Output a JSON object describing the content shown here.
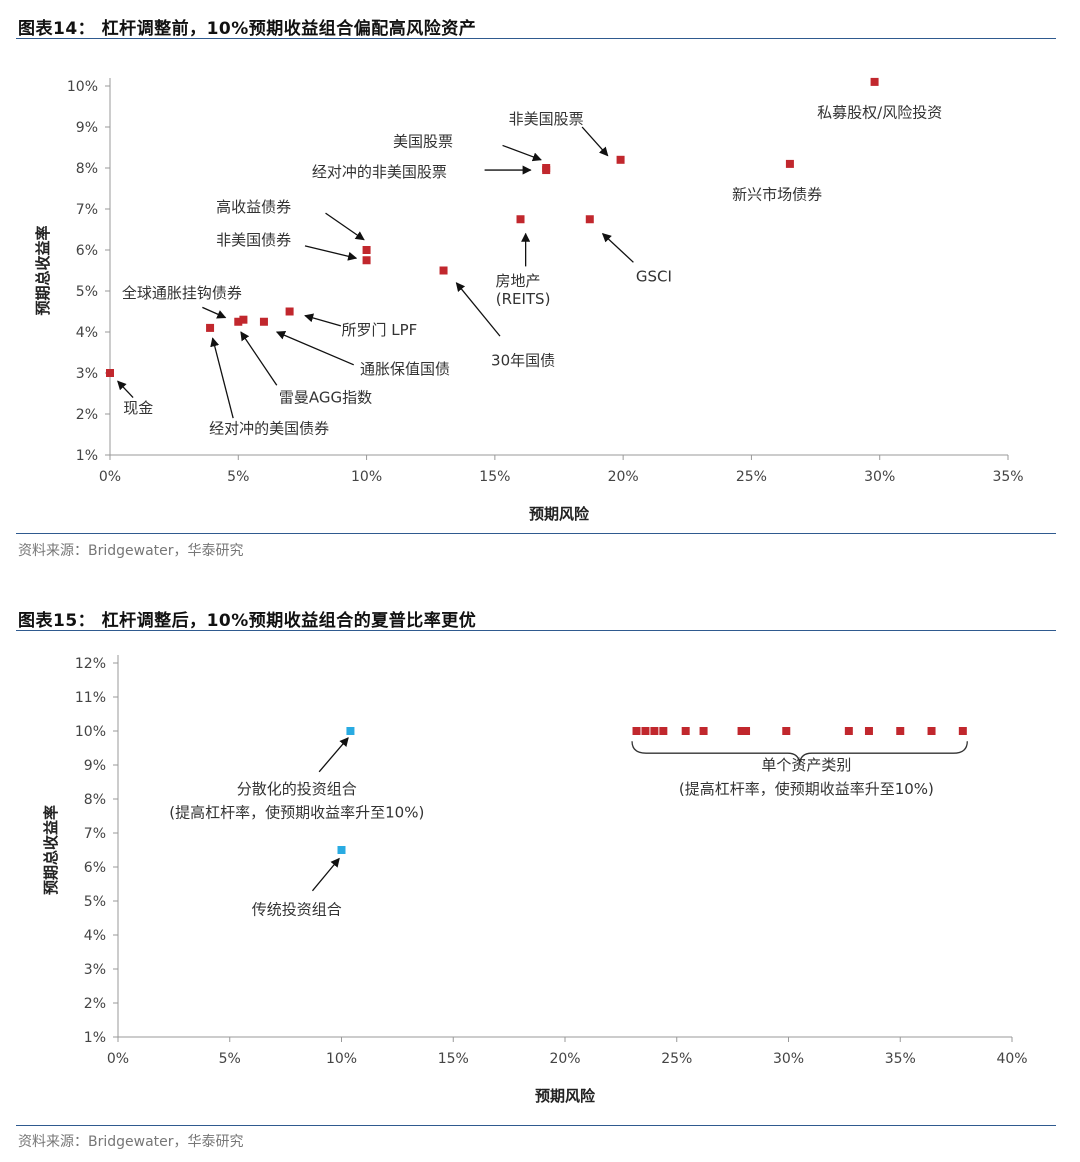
{
  "figure1": {
    "title": "图表14： 杠杆调整前，10%预期收益组合偏配高风险资产",
    "source": "资料来源：Bridgewater，华泰研究"
  },
  "figure2": {
    "title": "图表15： 杠杆调整后，10%预期收益组合的夏普比率更优",
    "source": "资料来源：Bridgewater，华泰研究"
  },
  "colors": {
    "marker_red": "#c1272d",
    "marker_blue": "#29abe2",
    "rule_blue": "#2f5a8f"
  },
  "chart_data": [
    {
      "type": "scatter",
      "title": "",
      "xlabel": "预期风险",
      "ylabel": "预期总收益率",
      "xlim": [
        0,
        35
      ],
      "ylim": [
        1,
        10
      ],
      "x_ticks": [
        "0%",
        "5%",
        "10%",
        "15%",
        "20%",
        "25%",
        "30%",
        "35%"
      ],
      "y_ticks": [
        "1%",
        "2%",
        "3%",
        "4%",
        "5%",
        "6%",
        "7%",
        "8%",
        "9%",
        "10%"
      ],
      "points": [
        {
          "x": 0.0,
          "y": 3.0
        },
        {
          "x": 3.9,
          "y": 4.1
        },
        {
          "x": 5.0,
          "y": 4.25
        },
        {
          "x": 5.2,
          "y": 4.3
        },
        {
          "x": 6.0,
          "y": 4.25
        },
        {
          "x": 7.0,
          "y": 4.5
        },
        {
          "x": 10.0,
          "y": 6.0
        },
        {
          "x": 10.0,
          "y": 5.75
        },
        {
          "x": 13.0,
          "y": 5.5
        },
        {
          "x": 16.0,
          "y": 6.75
        },
        {
          "x": 17.0,
          "y": 8.0
        },
        {
          "x": 17.0,
          "y": 7.95
        },
        {
          "x": 18.7,
          "y": 6.75
        },
        {
          "x": 19.9,
          "y": 8.2
        },
        {
          "x": 26.5,
          "y": 8.1
        },
        {
          "x": 29.8,
          "y": 10.1
        }
      ],
      "annotations": [
        {
          "text": "现金",
          "x": 1.1,
          "y": 2.15,
          "ax": 0.3,
          "ay": 2.8,
          "bx": 0.9,
          "by": 2.4
        },
        {
          "text": "经对冲的美国债券",
          "x": 6.2,
          "y": 1.65,
          "ax": 4.0,
          "ay": 3.85,
          "bx": 4.8,
          "by": 1.9
        },
        {
          "text": "雷曼AGG指数",
          "x": 8.4,
          "y": 2.4,
          "ax": 5.1,
          "ay": 4.0,
          "bx": 6.5,
          "by": 2.7
        },
        {
          "text": "通胀保值国债",
          "x": 11.5,
          "y": 3.1,
          "ax": 6.5,
          "ay": 4.0,
          "bx": 9.5,
          "by": 3.2
        },
        {
          "text": "所罗门 LPF",
          "x": 10.5,
          "y": 4.05,
          "ax": 7.6,
          "ay": 4.4,
          "bx": 9.0,
          "by": 4.15
        },
        {
          "text": "全球通胀挂钩债券",
          "x": 2.8,
          "y": 4.95,
          "ax": 4.5,
          "ay": 4.35,
          "bx": 3.6,
          "by": 4.6
        },
        {
          "text": "非美国债券",
          "x": 5.6,
          "y": 6.25,
          "ax": 9.6,
          "ay": 5.8,
          "bx": 7.6,
          "by": 6.1
        },
        {
          "text": "高收益债券",
          "x": 5.6,
          "y": 7.05,
          "ax": 9.9,
          "ay": 6.25,
          "bx": 8.4,
          "by": 6.9
        },
        {
          "text": "30年国债",
          "x": 16.1,
          "y": 3.3,
          "ax": 13.5,
          "ay": 5.2,
          "bx": 15.2,
          "by": 3.9
        },
        {
          "text": "房地产",
          "x": 15.9,
          "y": 5.25,
          "ax": 16.2,
          "ay": 6.4,
          "bx": 16.2,
          "by": 5.6
        },
        {
          "text": "(REITS)",
          "x": 16.1,
          "y": 4.8
        },
        {
          "text": "GSCI",
          "x": 21.2,
          "y": 5.35,
          "ax": 19.2,
          "ay": 6.4,
          "bx": 20.4,
          "by": 5.7
        },
        {
          "text": "美国股票",
          "x": 12.2,
          "y": 8.65,
          "ax": 16.8,
          "ay": 8.2,
          "bx": 15.3,
          "by": 8.55
        },
        {
          "text": "经对冲的非美国股票",
          "x": 10.5,
          "y": 7.9,
          "ax": 16.4,
          "ay": 7.95,
          "bx": 14.6,
          "by": 7.95
        },
        {
          "text": "非美国股票",
          "x": 17.0,
          "y": 9.2,
          "ax": 19.4,
          "ay": 8.3,
          "bx": 18.4,
          "by": 9.0
        },
        {
          "text": "新兴市场债券",
          "x": 26.0,
          "y": 7.35
        },
        {
          "text": "私募股权/风险投资",
          "x": 30.0,
          "y": 9.35
        }
      ]
    },
    {
      "type": "scatter",
      "title": "",
      "xlabel": "预期风险",
      "ylabel": "预期总收益率",
      "xlim": [
        0,
        40
      ],
      "ylim": [
        1,
        12
      ],
      "x_ticks": [
        "0%",
        "5%",
        "10%",
        "15%",
        "20%",
        "25%",
        "30%",
        "35%",
        "40%"
      ],
      "y_ticks": [
        "1%",
        "2%",
        "3%",
        "4%",
        "5%",
        "6%",
        "7%",
        "8%",
        "9%",
        "10%",
        "11%",
        "12%"
      ],
      "points": [
        {
          "x": 10.4,
          "y": 10.0,
          "group": "diversified"
        },
        {
          "x": 10.0,
          "y": 6.5,
          "group": "diversified"
        },
        {
          "x": 23.2,
          "y": 10.0
        },
        {
          "x": 23.6,
          "y": 10.0
        },
        {
          "x": 24.0,
          "y": 10.0
        },
        {
          "x": 24.4,
          "y": 10.0
        },
        {
          "x": 25.4,
          "y": 10.0
        },
        {
          "x": 26.2,
          "y": 10.0
        },
        {
          "x": 27.9,
          "y": 10.0
        },
        {
          "x": 28.1,
          "y": 10.0
        },
        {
          "x": 29.9,
          "y": 10.0
        },
        {
          "x": 32.7,
          "y": 10.0
        },
        {
          "x": 33.6,
          "y": 10.0
        },
        {
          "x": 35.0,
          "y": 10.0
        },
        {
          "x": 36.4,
          "y": 10.0
        },
        {
          "x": 37.8,
          "y": 10.0
        }
      ],
      "brace": {
        "x0": 23.0,
        "x1": 38.0,
        "y": 9.7
      },
      "annotations": [
        {
          "text": "分散化的投资组合",
          "x": 8.0,
          "y": 8.3,
          "ax": 10.3,
          "ay": 9.8,
          "bx": 9.0,
          "by": 8.8
        },
        {
          "text": "(提高杠杆率，使预期收益率升至10%)",
          "x": 8.0,
          "y": 7.6
        },
        {
          "text": "传统投资组合",
          "x": 8.0,
          "y": 4.75,
          "ax": 9.9,
          "ay": 6.25,
          "bx": 8.7,
          "by": 5.3
        },
        {
          "text": "单个资产类别",
          "x": 30.8,
          "y": 9.0
        },
        {
          "text": "(提高杠杆率，使预期收益率升至10%)",
          "x": 30.8,
          "y": 8.3
        }
      ]
    }
  ]
}
